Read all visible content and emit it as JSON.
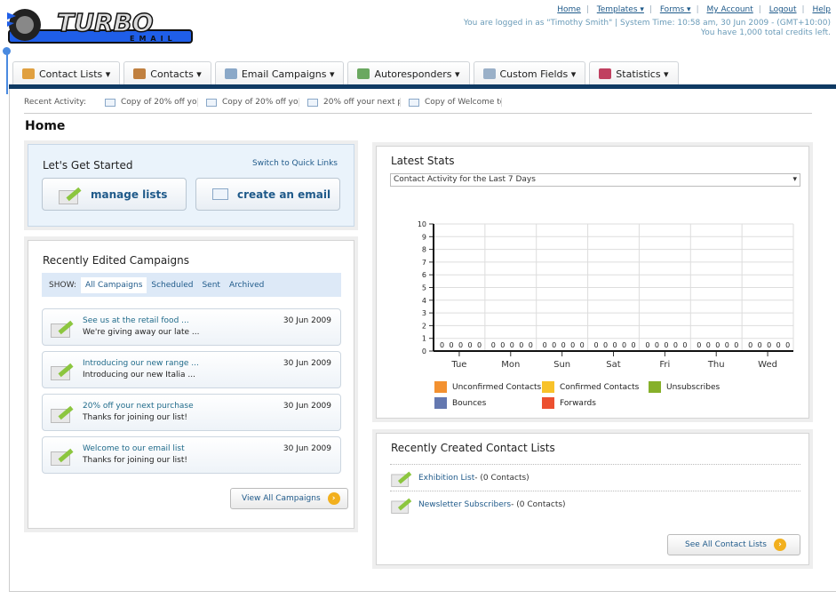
{
  "logo": {
    "text": "TURBO",
    "sub": "EMAIL"
  },
  "toplinks": [
    "Home",
    "Templates ▾",
    "Forms ▾",
    "My Account",
    "Logout",
    "Help"
  ],
  "user_info": "You are logged in as \"Timothy Smith\" | System Time: 10:58 am, 30 Jun 2009 - (GMT+10:00)",
  "credits": "You have 1,000 total credits left.",
  "tabs": [
    {
      "label": "Contact Lists ▾",
      "icon": "folder-contacts-icon",
      "color": "#e0a040"
    },
    {
      "label": "Contacts ▾",
      "icon": "users-icon",
      "color": "#c08040"
    },
    {
      "label": "Email Campaigns ▾",
      "icon": "envelope-icon",
      "color": "#8aa8c8"
    },
    {
      "label": "Autoresponders ▾",
      "icon": "envelope-arrow-icon",
      "color": "#6aa860"
    },
    {
      "label": "Custom Fields ▾",
      "icon": "document-icon",
      "color": "#9ab0c8"
    },
    {
      "label": "Statistics ▾",
      "icon": "bar-chart-icon",
      "color": "#c04060"
    }
  ],
  "recent": {
    "label": "Recent Activity:",
    "items": [
      "Copy of 20% off yo",
      "Copy of 20% off yo",
      "20% off your next p",
      "Copy of Welcome to"
    ]
  },
  "page_title": "Home",
  "get_started": {
    "title": "Let's Get Started",
    "switch": "Switch to Quick Links",
    "manage": "manage lists",
    "create": "create an email"
  },
  "campaigns": {
    "title": "Recently Edited Campaigns",
    "show": "SHOW:",
    "filters": [
      "All Campaigns",
      "Scheduled",
      "Sent",
      "Archived"
    ],
    "items": [
      {
        "title": "See us at the retail food ...",
        "desc": "We're giving away our late ...",
        "date": "30 Jun 2009"
      },
      {
        "title": "Introducing our new range ...",
        "desc": "Introducing our new Italia ...",
        "date": "30 Jun 2009"
      },
      {
        "title": "20% off your next purchase",
        "desc": "Thanks for joining our list!",
        "date": "30 Jun 2009"
      },
      {
        "title": "Welcome to our email list",
        "desc": "Thanks for joining our list!",
        "date": "30 Jun 2009"
      }
    ],
    "view_all": "View All Campaigns"
  },
  "stats": {
    "title": "Latest Stats",
    "select": "Contact Activity for the Last 7 Days"
  },
  "chart_data": {
    "type": "bar",
    "categories": [
      "Tue",
      "Mon",
      "Sun",
      "Sat",
      "Fri",
      "Thu",
      "Wed"
    ],
    "ylim": [
      0,
      10
    ],
    "yticks": [
      0,
      1,
      2,
      3,
      4,
      5,
      6,
      7,
      8,
      9,
      10
    ],
    "grid": true,
    "legend": "bottom",
    "series": [
      {
        "name": "Unconfirmed Contacts",
        "color": "#f39130",
        "values": [
          0,
          0,
          0,
          0,
          0,
          0,
          0
        ]
      },
      {
        "name": "Confirmed Contacts",
        "color": "#f8c22a",
        "values": [
          0,
          0,
          0,
          0,
          0,
          0,
          0
        ]
      },
      {
        "name": "Unsubscribes",
        "color": "#86b02a",
        "values": [
          0,
          0,
          0,
          0,
          0,
          0,
          0
        ]
      },
      {
        "name": "Bounces",
        "color": "#6478b0",
        "values": [
          0,
          0,
          0,
          0,
          0,
          0,
          0
        ]
      },
      {
        "name": "Forwards",
        "color": "#ec5030",
        "values": [
          0,
          0,
          0,
          0,
          0,
          0,
          0
        ]
      }
    ]
  },
  "lists": {
    "title": "Recently Created Contact Lists",
    "items": [
      {
        "name": "Exhibition List",
        "count": " - (0 Contacts)"
      },
      {
        "name": "Newsletter Subscribers",
        "count": " - (0 Contacts)"
      }
    ],
    "see_all": "See All Contact Lists"
  }
}
